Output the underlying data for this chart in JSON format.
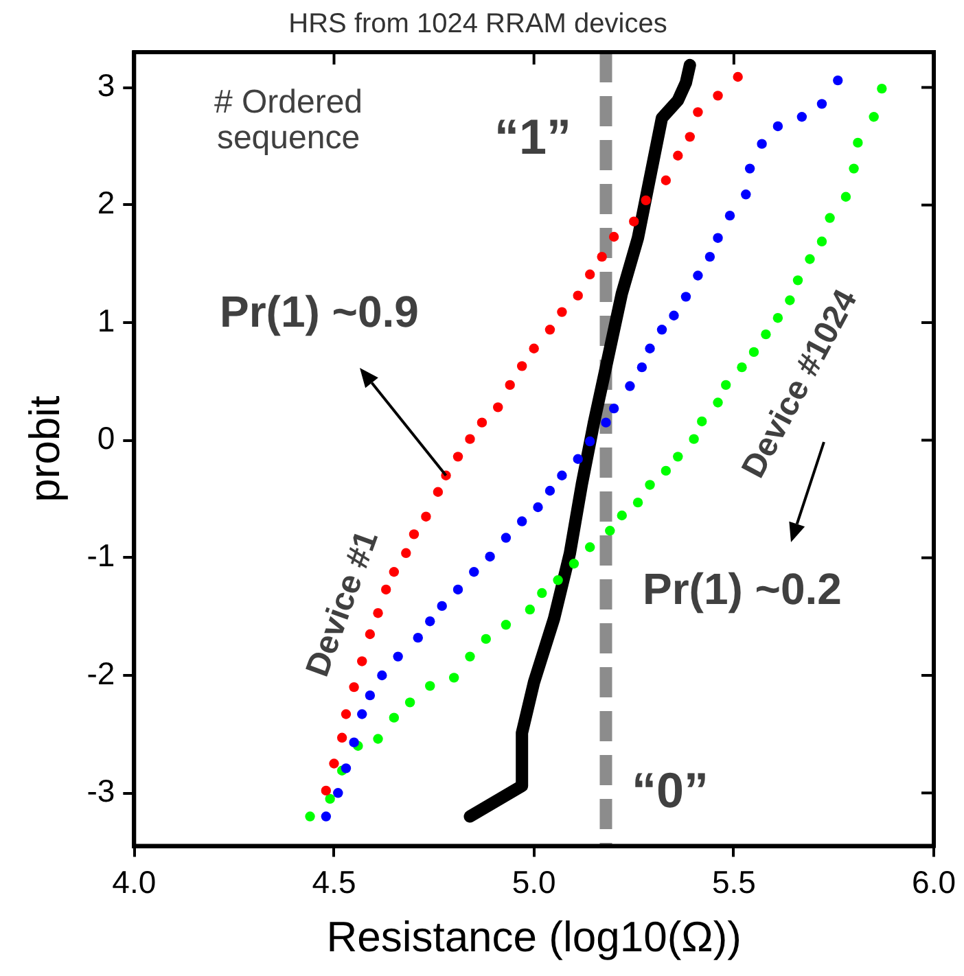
{
  "chart_data": {
    "type": "scatter",
    "title": "HRS from 1024 RRAM devices",
    "xlabel": "Resistance (log10(Ω))",
    "ylabel": "probit",
    "xlim": [
      4.0,
      6.0
    ],
    "xticks": [
      {
        "value": 4,
        "label": "4.0"
      },
      {
        "value": 4.5,
        "label": "4.5"
      },
      {
        "value": 5,
        "label": "5.0"
      },
      {
        "value": 5.5,
        "label": "5.5"
      },
      {
        "value": 6,
        "label": "6.0"
      }
    ],
    "ylim": [
      -3.45,
      3.3
    ],
    "yticks": [
      -3,
      -2,
      -1,
      0,
      1,
      2,
      3
    ],
    "grid": false,
    "legend": false,
    "marker": "circle",
    "series": [
      {
        "type": "scatter",
        "color": "#ff0000",
        "x": [
          4.48,
          4.5,
          4.52,
          4.53,
          4.55,
          4.57,
          4.59,
          4.61,
          4.63,
          4.65,
          4.68,
          4.7,
          4.73,
          4.76,
          4.78,
          4.81,
          4.84,
          4.87,
          4.91,
          4.94,
          4.97,
          5.0,
          5.04,
          5.07,
          5.11,
          5.14,
          5.17,
          5.2,
          5.25,
          5.28,
          5.33,
          5.36,
          5.39,
          5.41,
          5.46,
          5.51
        ],
        "values": [
          -2.98,
          -2.75,
          -2.53,
          -2.33,
          -2.1,
          -1.88,
          -1.65,
          -1.47,
          -1.27,
          -1.12,
          -0.96,
          -0.8,
          -0.65,
          -0.44,
          -0.3,
          -0.14,
          0.01,
          0.15,
          0.28,
          0.47,
          0.63,
          0.78,
          0.94,
          1.09,
          1.23,
          1.41,
          1.56,
          1.73,
          1.86,
          2.04,
          2.21,
          2.42,
          2.58,
          2.79,
          2.93,
          3.09
        ]
      },
      {
        "type": "scatter",
        "color": "#0000ff",
        "x": [
          4.48,
          4.51,
          4.53,
          4.55,
          4.57,
          4.59,
          4.62,
          4.66,
          4.71,
          4.74,
          4.77,
          4.81,
          4.85,
          4.89,
          4.93,
          4.97,
          5.01,
          5.04,
          5.07,
          5.11,
          5.14,
          5.18,
          5.2,
          5.24,
          5.27,
          5.29,
          5.32,
          5.35,
          5.38,
          5.41,
          5.44,
          5.46,
          5.49,
          5.53,
          5.54,
          5.57,
          5.61,
          5.67,
          5.72,
          5.76
        ],
        "values": [
          -3.2,
          -3.0,
          -2.79,
          -2.57,
          -2.33,
          -2.17,
          -2.0,
          -1.84,
          -1.68,
          -1.54,
          -1.41,
          -1.27,
          -1.12,
          -0.99,
          -0.83,
          -0.69,
          -0.57,
          -0.43,
          -0.3,
          -0.16,
          -0.01,
          0.15,
          0.27,
          0.46,
          0.62,
          0.78,
          0.94,
          1.06,
          1.22,
          1.4,
          1.56,
          1.72,
          1.91,
          2.09,
          2.31,
          2.52,
          2.67,
          2.75,
          2.86,
          3.06
        ]
      },
      {
        "type": "scatter",
        "color": "#00ff00",
        "x": [
          4.44,
          4.49,
          4.52,
          4.56,
          4.61,
          4.65,
          4.69,
          4.74,
          4.8,
          4.84,
          4.88,
          4.93,
          4.99,
          5.02,
          5.06,
          5.1,
          5.14,
          5.19,
          5.22,
          5.26,
          5.29,
          5.33,
          5.36,
          5.4,
          5.42,
          5.46,
          5.48,
          5.52,
          5.55,
          5.58,
          5.61,
          5.64,
          5.66,
          5.69,
          5.72,
          5.74,
          5.78,
          5.8,
          5.81,
          5.85,
          5.87
        ],
        "values": [
          -3.2,
          -3.05,
          -2.81,
          -2.6,
          -2.54,
          -2.36,
          -2.23,
          -2.09,
          -2.02,
          -1.84,
          -1.69,
          -1.57,
          -1.44,
          -1.3,
          -1.19,
          -1.05,
          -0.91,
          -0.77,
          -0.64,
          -0.53,
          -0.38,
          -0.26,
          -0.14,
          0.01,
          0.16,
          0.32,
          0.47,
          0.62,
          0.75,
          0.9,
          1.04,
          1.19,
          1.36,
          1.54,
          1.69,
          1.89,
          2.07,
          2.31,
          2.53,
          2.75,
          2.99
        ]
      },
      {
        "type": "line",
        "marker": "none",
        "color": "#000000",
        "x": [
          4.84,
          4.97,
          4.97,
          5.0,
          5.05,
          5.09,
          5.12,
          5.15,
          5.18,
          5.22,
          5.26,
          5.29,
          5.32,
          5.36,
          5.38,
          5.39
        ],
        "values": [
          -3.2,
          -2.94,
          -2.49,
          -2.06,
          -1.52,
          -0.96,
          -0.37,
          0.15,
          0.62,
          1.25,
          1.72,
          2.23,
          2.74,
          2.89,
          3.04,
          3.19
        ]
      }
    ],
    "ref_lines": [
      {
        "axis": "x",
        "value": 5.18,
        "color": "#8c8c8c",
        "line_style": "dashed"
      }
    ],
    "annotations": [
      "# Ordered sequence",
      "“1”",
      "“0”",
      {
        "text": "Pr(1) ~0.9",
        "x": 4.78,
        "y": -0.3
      },
      "Pr(1) ~0.2",
      "Device #1",
      "Device #1024"
    ]
  }
}
